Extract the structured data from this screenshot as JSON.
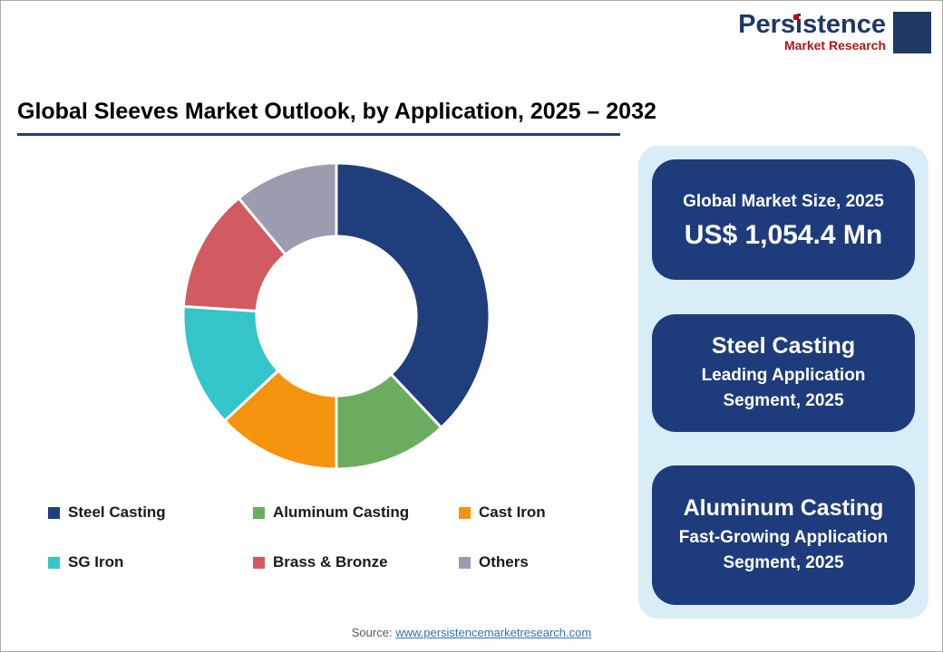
{
  "page": {
    "title": "Global Sleeves Market Outlook, by Application, 2025 – 2032",
    "source_label": "Source: ",
    "source_link": "www.persistencemarketresearch.com"
  },
  "logo": {
    "brand": "Persistence",
    "subtitle": "Market Research"
  },
  "chart_data": {
    "type": "pie",
    "donut": true,
    "title": "Global Sleeves Market Outlook, by Application, 2025 – 2032",
    "start_angle_deg": 0,
    "direction": "clockwise",
    "units": "% share of market (estimated from arc angles)",
    "legend_position": "bottom",
    "segments": [
      {
        "label": "Steel Casting",
        "value": 38,
        "color": "#1f3e7c"
      },
      {
        "label": "Aluminum Casting",
        "value": 12,
        "color": "#6bac5f"
      },
      {
        "label": "Cast Iron",
        "value": 13,
        "color": "#f6930d"
      },
      {
        "label": "SG Iron",
        "value": 13,
        "color": "#33c5ca"
      },
      {
        "label": "Brass & Bronze",
        "value": 13,
        "color": "#d15b60"
      },
      {
        "label": "Others",
        "value": 11,
        "color": "#9b9cad"
      }
    ]
  },
  "info_panel": {
    "cards": [
      {
        "line1": "Global Market Size, 2025",
        "line2": "US$ 1,054.4 Mn"
      },
      {
        "line1": "Steel Casting",
        "line2": "Leading Application Segment, 2025"
      },
      {
        "line1": "Aluminum Casting",
        "line2": "Fast-Growing Application Segment, 2025"
      }
    ]
  },
  "colors": {
    "accent_navy": "#1e3c7b",
    "panel_light_blue": "#d9edf7",
    "title_underline": "#1f3e7c",
    "link_blue": "#2e75b6",
    "logo_navy": "#1f3864",
    "logo_red": "#c00000"
  }
}
